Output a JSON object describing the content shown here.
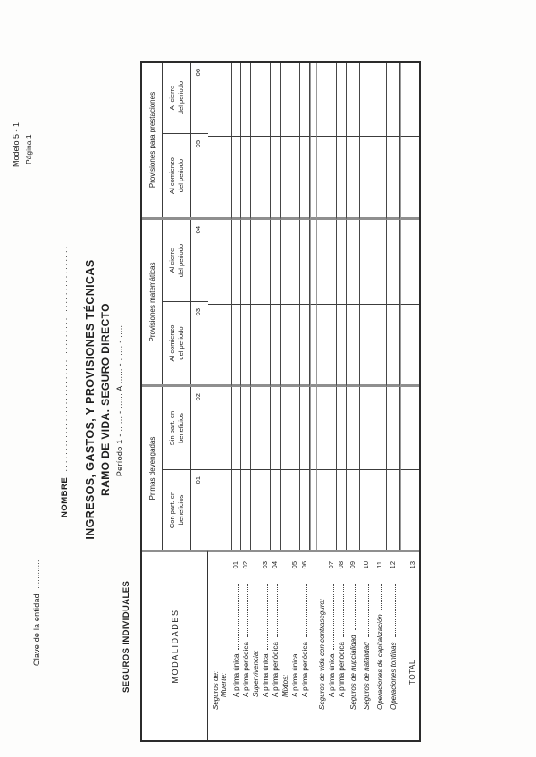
{
  "page": {
    "clave_label": "Clave de la entidad",
    "clave_dots": "............",
    "modelo": "Modelo 5 - 1",
    "pagina": "Página 1",
    "nombre_label": "NOMBRE",
    "nombre_dots": "......................................................",
    "title_line1": "INGRESOS, GASTOS, Y PROVISIONES TÉCNICAS",
    "title_line2": "RAMO  DE VIDA. SEGURO DIRECTO",
    "periodo_line": "Período 1 - ...... - ......    A    ...... - ...... - ......",
    "section_title": "SEGUROS INDIVIDUALES"
  },
  "table": {
    "modalidades": "MODALIDADES",
    "groups": [
      {
        "label": "Primas devengadas",
        "cols": [
          {
            "l1": "Con part. en",
            "l2": "beneficios",
            "code": "01"
          },
          {
            "l1": "Sin part. en",
            "l2": "beneficios",
            "code": "02"
          }
        ]
      },
      {
        "label": "Provisiones matemáticas",
        "cols": [
          {
            "l1": "Al comienzo",
            "l2": "del periodo",
            "code": "03"
          },
          {
            "l1": "Al cierre",
            "l2": "del periodo",
            "code": "04"
          }
        ]
      },
      {
        "label": "Provisiones para prestaciones",
        "cols": [
          {
            "l1": "Al comienzo",
            "l2": "del periodo",
            "code": "05"
          },
          {
            "l1": "Al cierre",
            "l2": "del periodo",
            "code": "06"
          }
        ]
      }
    ],
    "body": [
      {
        "h1": "Seguros de:",
        "h2": "Muerte:"
      },
      {
        "label": "A prima única",
        "code": "01"
      },
      {
        "label": "A prima periódica",
        "code": "02"
      },
      {
        "head": "Supervivencia:",
        "label": "A prima única",
        "code": "03"
      },
      {
        "label": "A prima periódica",
        "code": "04"
      },
      {
        "head": "Mixtos:",
        "label": "A prima única",
        "code": "05"
      },
      {
        "label": "A prima periódica",
        "code": "06"
      },
      {
        "spacer": true
      },
      {
        "head": "Seguros de vida con  contraseguro:",
        "label": "A prima única",
        "code": "07"
      },
      {
        "label": "A prima periódica",
        "code": "08"
      },
      {
        "label": "Seguros de nupcialidad",
        "code": "09"
      },
      {
        "label": "Seguros de natalidad",
        "code": "10"
      },
      {
        "label": "Operaciones de capitalización",
        "code": "11"
      },
      {
        "label": "Operaciones tontinas",
        "code": "12"
      },
      {
        "spacer": true
      },
      {
        "label": "TOTAL",
        "code": "13"
      }
    ]
  },
  "colors": {
    "ink": "#1f1f1f",
    "grid_line": "#3c3c3c",
    "grid_thick": "#8f8f8f",
    "paper": "#fdfdfc"
  }
}
